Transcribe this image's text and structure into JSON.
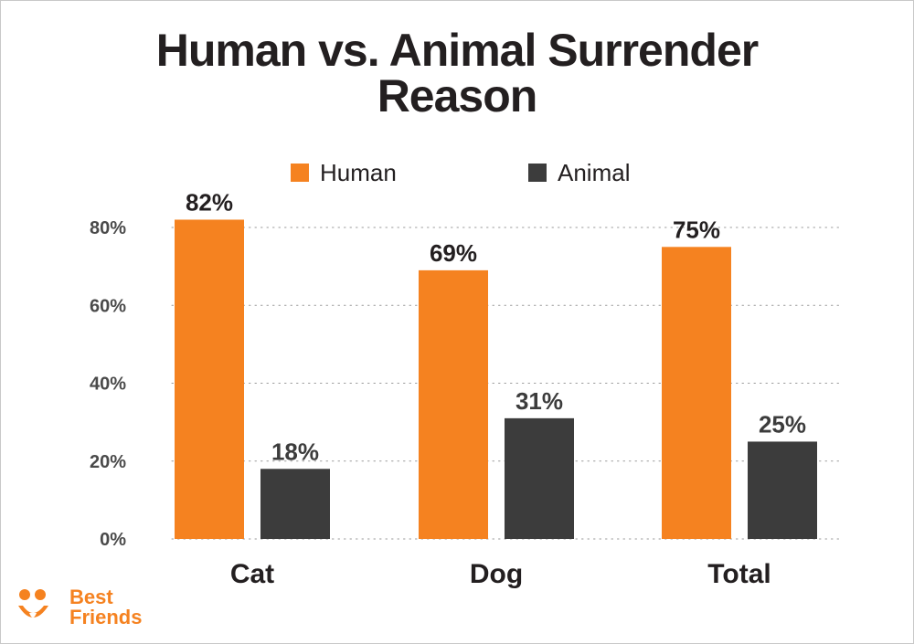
{
  "chart_data": {
    "type": "bar",
    "title_lines": [
      "Human vs. Animal Surrender",
      "Reason"
    ],
    "categories": [
      "Cat",
      "Dog",
      "Total"
    ],
    "series": [
      {
        "name": "Human",
        "color": "#f58220",
        "values": [
          82,
          69,
          75
        ],
        "labels": [
          "82%",
          "69%",
          "75%"
        ]
      },
      {
        "name": "Animal",
        "color": "#3c3c3c",
        "values": [
          18,
          31,
          25
        ],
        "labels": [
          "18%",
          "31%",
          "25%"
        ]
      }
    ],
    "yticks": [
      0,
      20,
      40,
      60,
      80
    ],
    "ytick_labels": [
      "0%",
      "20%",
      "40%",
      "60%",
      "80%"
    ],
    "ylim": [
      0,
      82
    ],
    "grid": true,
    "legend_position": "top-center"
  },
  "logo": {
    "line1": "Best",
    "line2": "Friends",
    "icon": "best-friends-logo-icon",
    "color": "#f58220"
  }
}
